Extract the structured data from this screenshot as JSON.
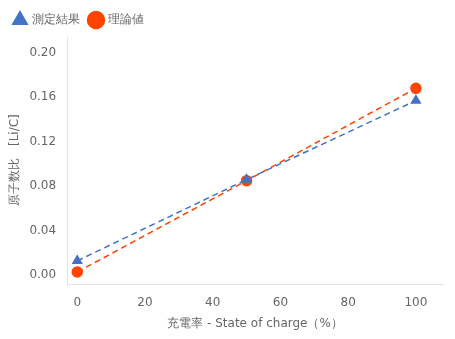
{
  "chart_data": {
    "type": "line",
    "xlabel": "充電率 - State of charge（%）",
    "ylabel": "原子数比　[Li/C]",
    "series": [
      {
        "name": "測定結果",
        "color": "#4472C4",
        "marker": "triangle",
        "line_style": "dashed",
        "x": [
          0,
          50,
          100
        ],
        "values": [
          0.013,
          0.086,
          0.157
        ]
      },
      {
        "name": "理論値",
        "color": "#FF4400",
        "marker": "circle",
        "line_style": "dashed",
        "x": [
          0,
          50,
          100
        ],
        "values": [
          0.003,
          0.085,
          0.168
        ]
      }
    ],
    "xlim": [
      -3,
      108
    ],
    "xticks": [
      0,
      20,
      40,
      60,
      80,
      100
    ],
    "ylim": [
      -0.008,
      0.215
    ],
    "yticks": [
      {
        "value": 0.0,
        "label": "0.00"
      },
      0.04,
      0.08,
      0.12,
      0.16,
      {
        "value": 0.2,
        "label": "0.20"
      }
    ],
    "grid": false,
    "legend": "upper left"
  }
}
